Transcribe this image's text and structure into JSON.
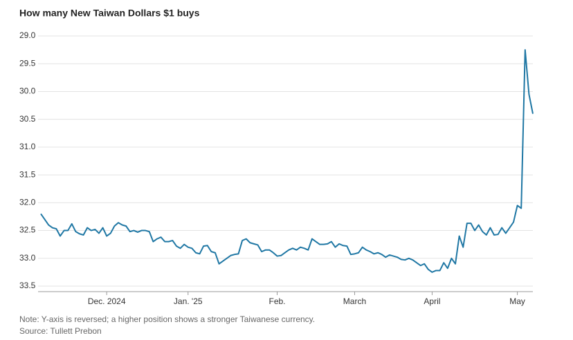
{
  "chart_data": {
    "type": "line",
    "title": "How many New Taiwan Dollars $1 buys",
    "note": "Note: Y-axis is reversed; a higher position shows a stronger Taiwanese currency.",
    "source": "Source: Tullett Prebon",
    "y_reversed": true,
    "grid": true,
    "color": "#1f77a4",
    "ylim": [
      29.0,
      33.5
    ],
    "yticks": [
      {
        "value": 29,
        "label": "29.0"
      },
      29.5,
      {
        "value": 30,
        "label": "30.0"
      },
      30.5,
      {
        "value": 31,
        "label": "31.0"
      },
      31.5,
      {
        "value": 32,
        "label": "32.0"
      },
      32.5,
      {
        "value": 33,
        "label": "33.0"
      },
      33.5
    ],
    "categories": [
      null,
      null,
      null,
      null,
      null,
      null,
      null,
      null,
      null,
      null,
      null,
      null,
      null,
      null,
      null,
      null,
      null,
      "Dec. 2024",
      null,
      null,
      null,
      null,
      null,
      null,
      null,
      null,
      null,
      null,
      null,
      null,
      null,
      null,
      null,
      null,
      null,
      null,
      null,
      null,
      "Jan. '25",
      null,
      null,
      null,
      null,
      null,
      null,
      null,
      null,
      null,
      null,
      null,
      null,
      null,
      null,
      null,
      null,
      null,
      null,
      null,
      null,
      null,
      null,
      "Feb.",
      null,
      null,
      null,
      null,
      null,
      null,
      null,
      null,
      null,
      null,
      null,
      null,
      null,
      null,
      null,
      null,
      null,
      null,
      null,
      "March",
      null,
      null,
      null,
      null,
      null,
      null,
      null,
      null,
      null,
      null,
      null,
      null,
      null,
      null,
      null,
      null,
      null,
      null,
      null,
      "April",
      null,
      null,
      null,
      null,
      null,
      null,
      null,
      null,
      null,
      null,
      null,
      null,
      null,
      null,
      null,
      null,
      null,
      null,
      null,
      null,
      null,
      "May",
      null,
      null,
      null,
      null
    ],
    "values": [
      32.2,
      32.3,
      32.4,
      32.45,
      32.47,
      32.6,
      32.5,
      32.5,
      32.38,
      32.52,
      32.56,
      32.58,
      32.45,
      32.5,
      32.48,
      32.55,
      32.45,
      32.6,
      32.55,
      32.42,
      32.36,
      32.4,
      32.42,
      32.52,
      32.5,
      32.53,
      32.5,
      32.5,
      32.52,
      32.7,
      32.65,
      32.62,
      32.7,
      32.7,
      32.68,
      32.78,
      32.82,
      32.75,
      32.8,
      32.82,
      32.9,
      32.92,
      32.78,
      32.77,
      32.88,
      32.9,
      33.1,
      33.05,
      33.0,
      32.95,
      32.93,
      32.92,
      32.68,
      32.65,
      32.72,
      32.74,
      32.76,
      32.88,
      32.85,
      32.85,
      32.9,
      32.96,
      32.95,
      32.9,
      32.85,
      32.82,
      32.85,
      32.8,
      32.82,
      32.85,
      32.65,
      32.7,
      32.75,
      32.75,
      32.74,
      32.7,
      32.8,
      32.74,
      32.77,
      32.78,
      32.93,
      32.92,
      32.9,
      32.8,
      32.85,
      32.88,
      32.92,
      32.9,
      32.93,
      32.98,
      32.94,
      32.96,
      32.98,
      33.02,
      33.03,
      33.0,
      33.03,
      33.08,
      33.13,
      33.1,
      33.2,
      33.25,
      33.22,
      33.22,
      33.08,
      33.18,
      33.0,
      33.1,
      32.6,
      32.8,
      32.37,
      32.37,
      32.5,
      32.4,
      32.52,
      32.58,
      32.45,
      32.58,
      32.57,
      32.45,
      32.55,
      32.45,
      32.35,
      32.05,
      32.1,
      29.25,
      30.05,
      30.4
    ]
  }
}
